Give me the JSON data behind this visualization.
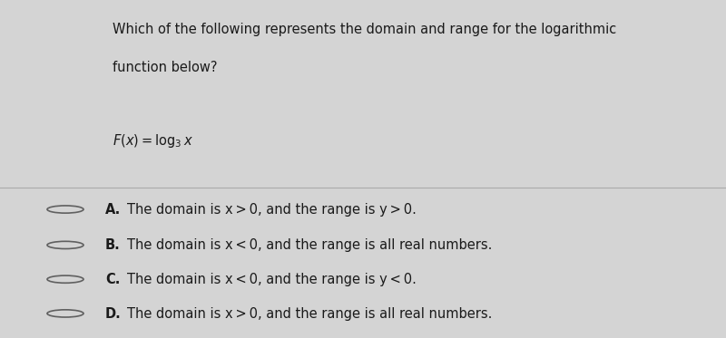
{
  "bg_top": "#d4d4d4",
  "bg_bottom": "#cacaca",
  "text_color": "#1a1a1a",
  "divider_color": "#aaaaaa",
  "question_line1": "Which of the following represents the domain and range for the logarithmic",
  "question_line2": "function below?",
  "formula_prefix": "F(x) = log",
  "formula_sub": "3",
  "formula_suffix": " x",
  "options": [
    {
      "label": "A.",
      "full_text": "The domain is x > 0, and the range is y > 0."
    },
    {
      "label": "B.",
      "full_text": "The domain is x < 0, and the range is all real numbers."
    },
    {
      "label": "C.",
      "full_text": "The domain is x < 0, and the range is y < 0."
    },
    {
      "label": "D.",
      "full_text": "The domain is x > 0, and the range is all real numbers."
    }
  ],
  "fig_width": 8.0,
  "fig_height": 3.73,
  "dpi": 100
}
